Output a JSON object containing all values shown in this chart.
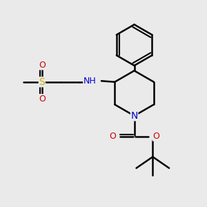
{
  "bg_color": "#eaeaea",
  "atom_colors": {
    "C": "#000000",
    "N": "#0000cc",
    "O": "#cc0000",
    "S": "#ccaa00",
    "H": "#555555"
  },
  "bond_color": "#000000",
  "line_width": 1.8,
  "font_size": 8.5,
  "fig_width": 3.0,
  "fig_height": 3.0,
  "dpi": 100
}
